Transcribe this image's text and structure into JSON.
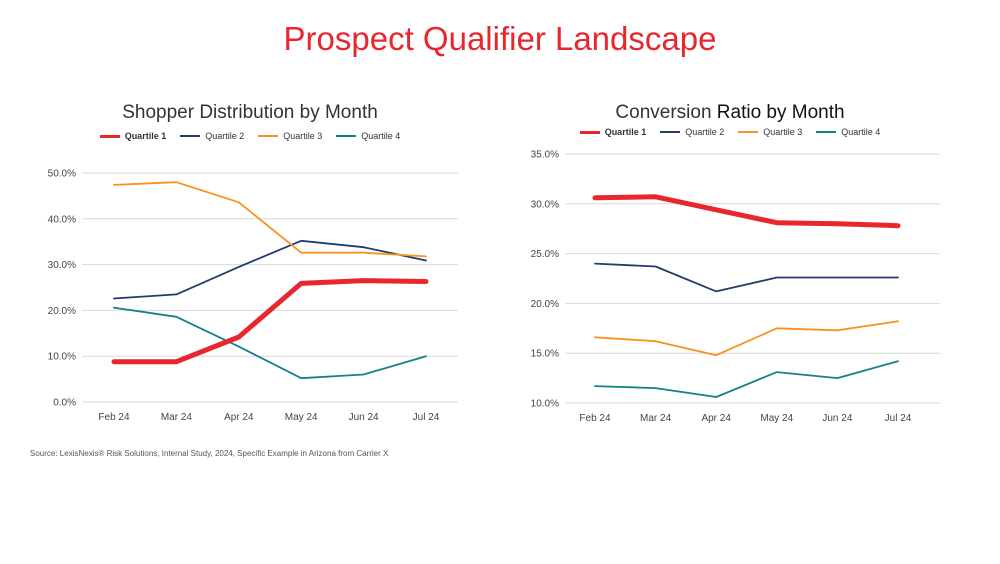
{
  "page": {
    "title": "Prospect Qualifier Landscape",
    "source": "Source:  LexisNexis® Risk Solutions, Internal Study, 2024, Specific Example in Arizona from Carrier X"
  },
  "chart_data": [
    {
      "type": "line",
      "title": "Shopper Distribution by Month",
      "xlabel": "",
      "ylabel": "",
      "categories": [
        "Feb 24",
        "Mar 24",
        "Apr 24",
        "May 24",
        "Jun 24",
        "Jul 24"
      ],
      "y_ticks": [
        "0.0%",
        "10.0%",
        "20.0%",
        "30.0%",
        "40.0%",
        "50.0%"
      ],
      "ylim": [
        0,
        50
      ],
      "y_unit": "percent",
      "grid": true,
      "legend_position": "top",
      "series": [
        {
          "name": "Quartile 1",
          "color": "#e8262d",
          "emphasis": true,
          "values": [
            8.8,
            8.8,
            14.2,
            25.9,
            26.5,
            26.3
          ]
        },
        {
          "name": "Quartile 2",
          "color": "#253b6e",
          "emphasis": false,
          "values": [
            22.6,
            23.5,
            29.5,
            35.2,
            33.8,
            30.9
          ]
        },
        {
          "name": "Quartile 3",
          "color": "#f7931e",
          "emphasis": false,
          "values": [
            47.4,
            48.0,
            43.6,
            32.6,
            32.6,
            31.8
          ]
        },
        {
          "name": "Quartile 4",
          "color": "#17808a",
          "emphasis": false,
          "values": [
            20.6,
            18.6,
            12.1,
            5.2,
            6.0,
            10.0
          ]
        }
      ]
    },
    {
      "type": "line",
      "title_parts": [
        "Conversion ",
        "Ratio by Month"
      ],
      "xlabel": "",
      "ylabel": "",
      "categories": [
        "Feb 24",
        "Mar 24",
        "Apr 24",
        "May 24",
        "Jun 24",
        "Jul 24"
      ],
      "y_ticks": [
        "10.0%",
        "15.0%",
        "20.0%",
        "25.0%",
        "30.0%",
        "35.0%"
      ],
      "ylim": [
        10,
        35
      ],
      "y_unit": "percent",
      "grid": true,
      "legend_position": "top",
      "series": [
        {
          "name": "Quartile 1",
          "color": "#e8262d",
          "emphasis": true,
          "values": [
            30.6,
            30.7,
            29.4,
            28.1,
            28.0,
            27.8
          ]
        },
        {
          "name": "Quartile 2",
          "color": "#253b6e",
          "emphasis": false,
          "values": [
            24.0,
            23.7,
            21.2,
            22.6,
            22.6,
            22.6
          ]
        },
        {
          "name": "Quartile 3",
          "color": "#f7931e",
          "emphasis": false,
          "values": [
            16.6,
            16.2,
            14.8,
            17.5,
            17.3,
            18.2
          ]
        },
        {
          "name": "Quartile 4",
          "color": "#17808a",
          "emphasis": false,
          "values": [
            11.7,
            11.5,
            10.6,
            13.1,
            12.5,
            14.2
          ]
        }
      ]
    }
  ]
}
